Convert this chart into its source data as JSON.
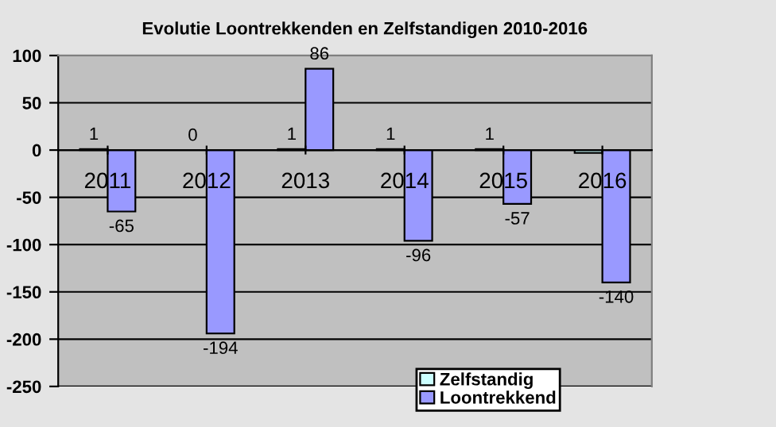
{
  "chart_data": {
    "type": "bar",
    "title": "Evolutie Loontrekkenden en Zelfstandigen 2010-2016",
    "categories": [
      "2011",
      "2012",
      "2013",
      "2014",
      "2015",
      "2016"
    ],
    "series": [
      {
        "name": "Zelfstandig",
        "color": "#ccffff",
        "values": [
          1,
          0,
          1,
          1,
          1,
          -3
        ],
        "value_labels": [
          "1",
          "0",
          "1",
          "1",
          "1",
          null
        ]
      },
      {
        "name": "Loontrekkend",
        "color": "#9999ff",
        "values": [
          -65,
          -194,
          86,
          -96,
          -57,
          -140
        ],
        "value_labels": [
          "-65",
          "-194",
          "86",
          "-96",
          "-57",
          "-140"
        ]
      }
    ],
    "ylim": [
      -250,
      100
    ],
    "yticks": [
      -250,
      -200,
      -150,
      -100,
      -50,
      0,
      50,
      100
    ],
    "grid": "y",
    "legend": "bottom right"
  }
}
